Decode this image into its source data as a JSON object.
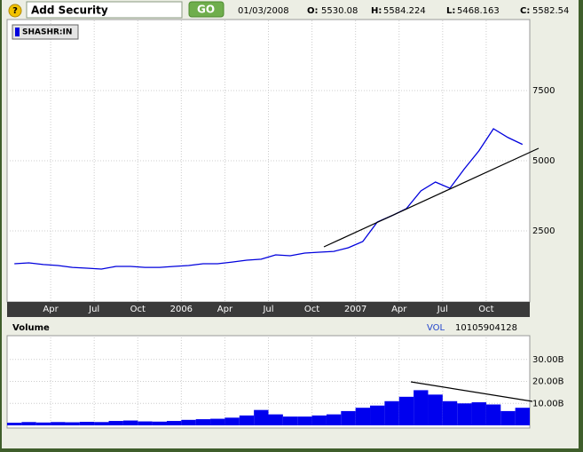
{
  "toolbar": {
    "help": "?",
    "search": "Add Security",
    "button": "GO",
    "date": "01/03/2008",
    "quote": [
      {
        "label": "O:",
        "value": "5530.08"
      },
      {
        "label": "H:",
        "value": "5584.224"
      },
      {
        "label": "L:",
        "value": "5468.163"
      },
      {
        "label": "C:",
        "value": "5582.54"
      }
    ]
  },
  "chart_data": [
    {
      "type": "line",
      "categories": [
        null,
        null,
        null,
        "Apr",
        null,
        null,
        "Jul",
        null,
        null,
        "Oct",
        null,
        null,
        "2006",
        null,
        null,
        "Apr",
        null,
        null,
        "Jul",
        null,
        null,
        "Oct",
        null,
        null,
        "2007",
        null,
        null,
        "Apr",
        null,
        null,
        "Jul",
        null,
        null,
        "Oct",
        null,
        null
      ],
      "series": [
        {
          "name": "SHASHR:IN",
          "color": "#0000dd",
          "values": [
            1330,
            1360,
            1300,
            1265,
            1200,
            1170,
            1140,
            1235,
            1235,
            1200,
            1200,
            1235,
            1265,
            1330,
            1330,
            1390,
            1455,
            1490,
            1645,
            1615,
            1710,
            1740,
            1770,
            1900,
            2120,
            2815,
            3040,
            3290,
            3925,
            4240,
            4020,
            4715,
            5350,
            6140,
            5825,
            5582.54
          ]
        }
      ],
      "ylim": [
        0,
        10000
      ],
      "yticks": [
        2500,
        5000,
        7500
      ],
      "grid": true
    },
    {
      "type": "bar",
      "title": "Volume",
      "indicator": {
        "label": "VOL",
        "value": 10105904128
      },
      "color": "#0000ee",
      "values": [
        1.2,
        1.5,
        1.3,
        1.5,
        1.4,
        1.6,
        1.5,
        2.0,
        2.2,
        1.8,
        1.7,
        2.0,
        2.5,
        2.8,
        3.0,
        3.5,
        4.5,
        7.0,
        5.0,
        4.0,
        4.0,
        4.5,
        5.0,
        6.5,
        8.0,
        9.0,
        11.0,
        13.0,
        16.0,
        14.0,
        11.0,
        10.0,
        10.5,
        9.5,
        6.5,
        8.0
      ],
      "ylim": [
        0,
        40
      ],
      "yticks": [
        {
          "value": 10,
          "label": "10.00B"
        },
        {
          "value": 20,
          "label": "20.00B"
        },
        {
          "value": 30,
          "label": "30.00B"
        }
      ],
      "grid": true
    }
  ]
}
